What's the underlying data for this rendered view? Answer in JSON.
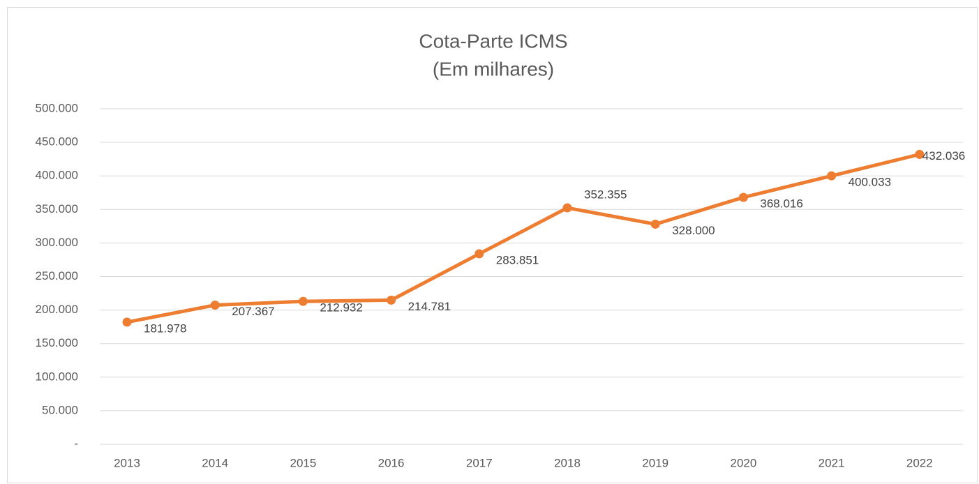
{
  "chart_data": {
    "type": "line",
    "title": "Cota-Parte ICMS",
    "subtitle": "(Em milhares)",
    "categories": [
      "2013",
      "2014",
      "2015",
      "2016",
      "2017",
      "2018",
      "2019",
      "2020",
      "2021",
      "2022"
    ],
    "series": [
      {
        "name": "Cota-Parte ICMS",
        "color": "#ed7d31",
        "values": [
          181978,
          207367,
          212932,
          214781,
          283851,
          352355,
          328000,
          368016,
          400033,
          432036
        ],
        "value_labels": [
          "181.978",
          "207.367",
          "212.932",
          "214.781",
          "283.851",
          "352.355",
          "328.000",
          "368.016",
          "400.033",
          "432.036"
        ]
      }
    ],
    "ylim": [
      0,
      500000
    ],
    "yticks": [
      {
        "value": 0,
        "label": "-"
      },
      {
        "value": 50000,
        "label": "50.000"
      },
      {
        "value": 100000,
        "label": "100.000"
      },
      {
        "value": 150000,
        "label": "150.000"
      },
      {
        "value": 200000,
        "label": "200.000"
      },
      {
        "value": 250000,
        "label": "250.000"
      },
      {
        "value": 300000,
        "label": "300.000"
      },
      {
        "value": 350000,
        "label": "350.000"
      },
      {
        "value": 400000,
        "label": "400.000"
      },
      {
        "value": 450000,
        "label": "450.000"
      },
      {
        "value": 500000,
        "label": "500.000"
      }
    ],
    "grid": true
  }
}
